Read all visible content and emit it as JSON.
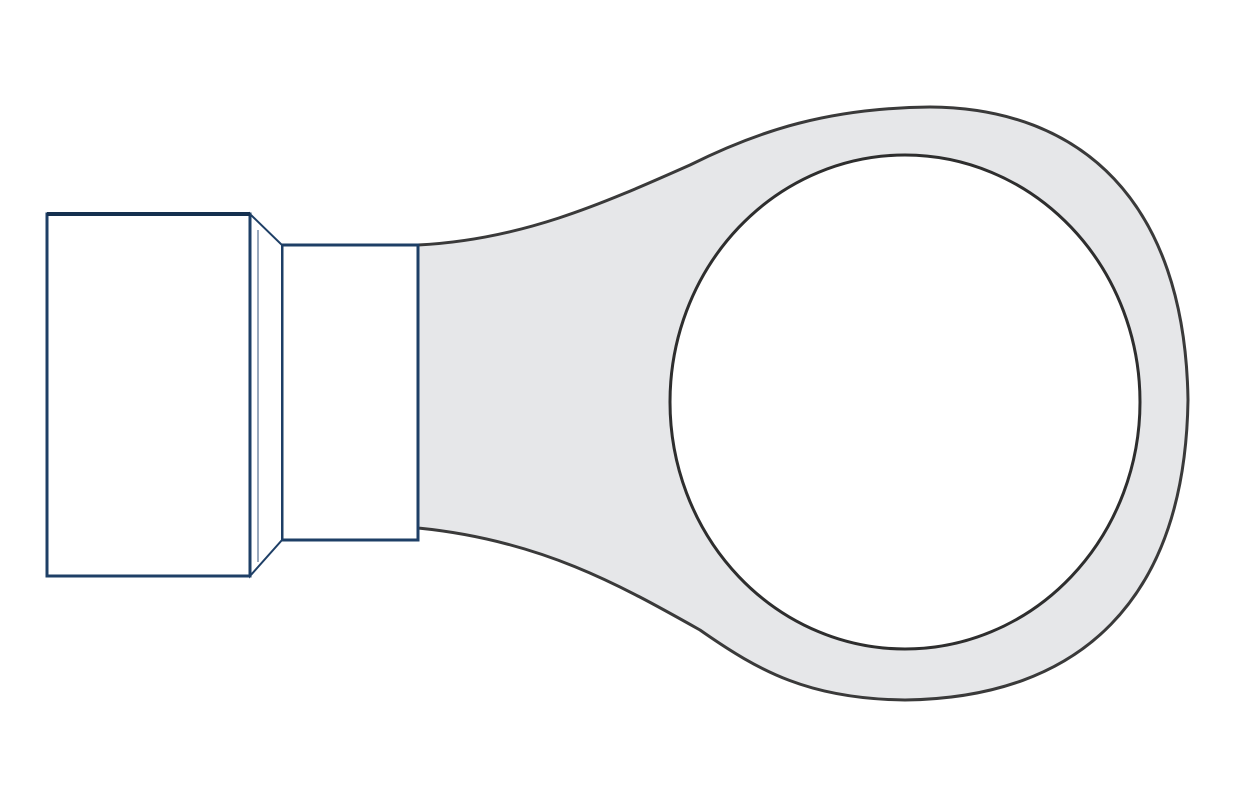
{
  "diagram": {
    "subject": "ring terminal",
    "colors": {
      "background": "#ffffff",
      "insulation_outline": "#1e3f66",
      "insulation_fill": "#ffffff",
      "metal_fill": "#e6e7e9",
      "metal_outline": "#3a3a3a",
      "hole_fill": "#ffffff"
    },
    "parts": [
      "insulation-sleeve",
      "sleeve-taper",
      "crimp-barrel",
      "tongue",
      "ring",
      "stud-hole"
    ]
  }
}
